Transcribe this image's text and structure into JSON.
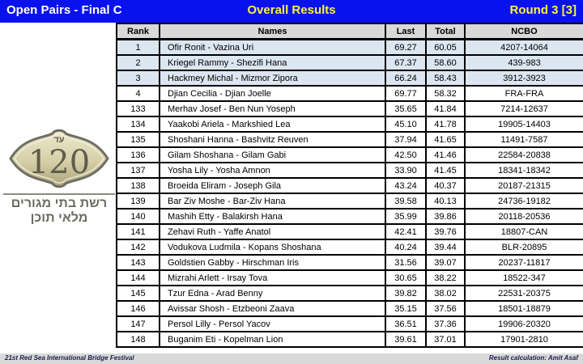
{
  "header": {
    "left_title": "Open Pairs - Final C",
    "center_title": "Overall Results",
    "right_title": "Round 3 [3]",
    "bar_color": "#0912ee",
    "left_title_color": "#ffffff",
    "accent_title_color": "#fdf23c"
  },
  "table": {
    "columns": [
      "Rank",
      "Names",
      "Last",
      "Total",
      "NCBO"
    ],
    "header_bg": "#d9d9d9",
    "highlight_row_color": "#dce6f1",
    "rows": [
      {
        "rank": "1",
        "names": "Ofir Ronit - Vazina Uri",
        "last": "69.27",
        "total": "60.05",
        "ncbo": "4207-14064",
        "highlighted": true
      },
      {
        "rank": "2",
        "names": "Kriegel Rammy - Shezifi Hana",
        "last": "67.37",
        "total": "58.60",
        "ncbo": "439-983",
        "highlighted": true
      },
      {
        "rank": "3",
        "names": "Hackmey Michal - Mizmor Zipora",
        "last": "66.24",
        "total": "58.43",
        "ncbo": "3912-3923",
        "highlighted": true
      },
      {
        "rank": "4",
        "names": "Djian Cecilia - Djian Joelle",
        "last": "69.77",
        "total": "58.32",
        "ncbo": "FRA-FRA",
        "highlighted": false
      },
      {
        "rank": "133",
        "names": "Merhav Josef - Ben Nun Yoseph",
        "last": "35.65",
        "total": "41.84",
        "ncbo": "7214-12637",
        "highlighted": false
      },
      {
        "rank": "134",
        "names": "Yaakobi Ariela - Markshied Lea",
        "last": "45.10",
        "total": "41.78",
        "ncbo": "19905-14403",
        "highlighted": false
      },
      {
        "rank": "135",
        "names": "Shoshani Hanna - Bashvitz Reuven",
        "last": "37.94",
        "total": "41.65",
        "ncbo": "11491-7587",
        "highlighted": false
      },
      {
        "rank": "136",
        "names": "Gilam Shoshana - Gilam Gabi",
        "last": "42.50",
        "total": "41.46",
        "ncbo": "22584-20838",
        "highlighted": false
      },
      {
        "rank": "137",
        "names": "Yosha Lily - Yosha Amnon",
        "last": "33.90",
        "total": "41.45",
        "ncbo": "18341-18342",
        "highlighted": false
      },
      {
        "rank": "138",
        "names": "Broeida Eliram - Joseph Gila",
        "last": "43.24",
        "total": "40.37",
        "ncbo": "20187-21315",
        "highlighted": false
      },
      {
        "rank": "139",
        "names": "Bar Ziv Moshe - Bar-Ziv Hana",
        "last": "39.58",
        "total": "40.13",
        "ncbo": "24736-19182",
        "highlighted": false
      },
      {
        "rank": "140",
        "names": "Mashih Etty - Balakirsh Hana",
        "last": "35.99",
        "total": "39.86",
        "ncbo": "20118-20536",
        "highlighted": false
      },
      {
        "rank": "141",
        "names": "Zehavi Ruth - Yaffe Anatol",
        "last": "42.41",
        "total": "39.76",
        "ncbo": "18807-CAN",
        "highlighted": false
      },
      {
        "rank": "142",
        "names": "Vodukova Ludmila - Kopans Shoshana",
        "last": "40.24",
        "total": "39.44",
        "ncbo": "BLR-20895",
        "highlighted": false
      },
      {
        "rank": "143",
        "names": "Goldstien Gabby - Hirschman Iris",
        "last": "31.56",
        "total": "39.07",
        "ncbo": "20237-11817",
        "highlighted": false
      },
      {
        "rank": "144",
        "names": "Mizrahi Arlett - Irsay Tova",
        "last": "30.65",
        "total": "38.22",
        "ncbo": "18522-347",
        "highlighted": false
      },
      {
        "rank": "145",
        "names": "Tzur Edna - Arad Benny",
        "last": "39.82",
        "total": "38.02",
        "ncbo": "22531-20375",
        "highlighted": false
      },
      {
        "rank": "146",
        "names": "Avissar Shosh - Etzbeoni Zaava",
        "last": "35.15",
        "total": "37.56",
        "ncbo": "18501-18879",
        "highlighted": false
      },
      {
        "rank": "147",
        "names": "Persol Lilly - Persol Yacov",
        "last": "36.51",
        "total": "37.36",
        "ncbo": "19906-20320",
        "highlighted": false
      },
      {
        "rank": "148",
        "names": "Buganim Eti - Kopelman Lion",
        "last": "39.61",
        "total": "37.01",
        "ncbo": "17901-2810",
        "highlighted": false
      }
    ]
  },
  "logo": {
    "top_word": "עד",
    "number": "120",
    "tagline_line1": "רשת בתי מגורים",
    "tagline_line2": "מלאי תוכן"
  },
  "footer": {
    "left_text": "21st Red Sea International Bridge Festival",
    "right_text": "Result calculation: Amit Asaf"
  }
}
